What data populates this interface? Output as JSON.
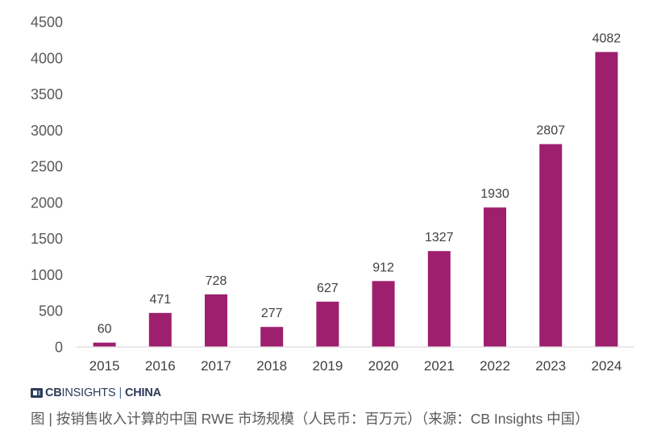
{
  "chart_data": {
    "type": "bar",
    "categories": [
      "2015",
      "2016",
      "2017",
      "2018",
      "2019",
      "2020",
      "2021",
      "2022",
      "2023",
      "2024"
    ],
    "values": [
      60,
      471,
      728,
      277,
      627,
      912,
      1327,
      1930,
      2807,
      4082
    ],
    "ylim": [
      0,
      4500
    ],
    "yticks": [
      0,
      500,
      1000,
      1500,
      2000,
      2500,
      3000,
      3500,
      4000,
      4500
    ],
    "grid": false,
    "legend": "none",
    "data_labels": true,
    "bar_color": "#9E1F6E"
  },
  "logo": {
    "brand_bold": "CB",
    "brand_rest": "INSIGHTS",
    "separator": "|",
    "region": "CHINA",
    "color": "#2C3B57"
  },
  "caption": "图 | 按销售收入计算的中国 RWE 市场规模（人民币：百万元）（来源：CB Insights 中国）"
}
